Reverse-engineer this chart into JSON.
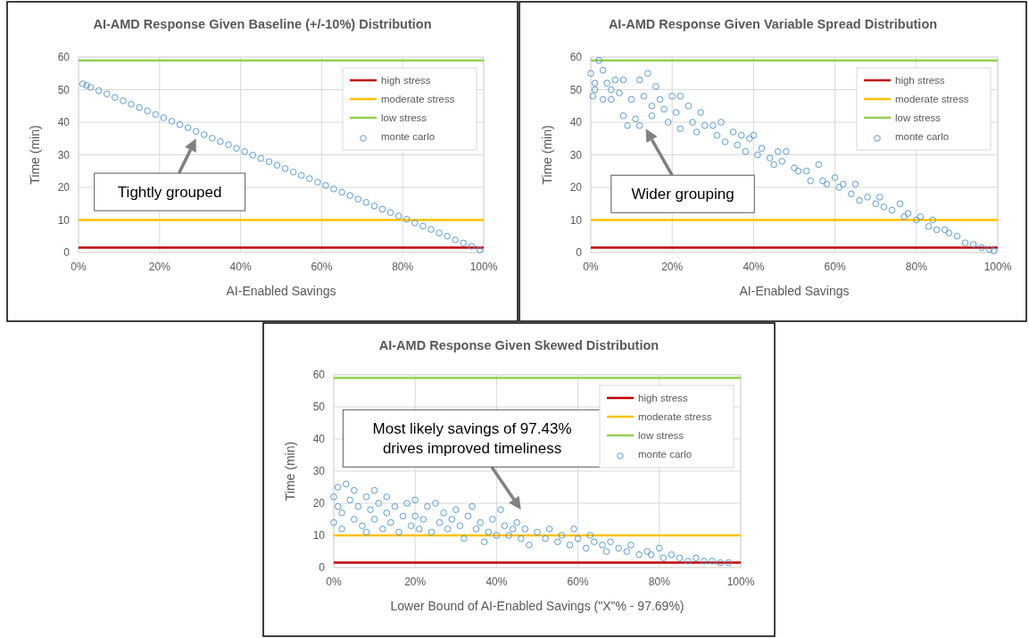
{
  "chart_data": [
    {
      "type": "scatter",
      "title": "AI-AMD Response Given Baseline (+/-10%) Distribution",
      "xlabel": "AI-Enabled Savings",
      "ylabel": "Time (min)",
      "xlim": [
        0,
        100
      ],
      "xticks": [
        {
          "value": 0,
          "label": "0%"
        },
        {
          "value": 20,
          "label": "20%"
        },
        {
          "value": 40,
          "label": "40%"
        },
        {
          "value": 60,
          "label": "60%"
        },
        {
          "value": 80,
          "label": "80%"
        },
        {
          "value": 100,
          "label": "100%"
        }
      ],
      "ylim": [
        0,
        60
      ],
      "yticks": [
        0,
        10,
        20,
        30,
        40,
        50,
        60
      ],
      "grid": true,
      "legend": "top right",
      "annotations": [
        "Tightly grouped"
      ],
      "series": [
        {
          "type": "line",
          "name": "high stress",
          "color": "#c00000",
          "marker": "none",
          "x": [
            0,
            100
          ],
          "values": [
            1.5,
            1.5
          ]
        },
        {
          "type": "line",
          "name": "moderate stress",
          "color": "#ffc000",
          "marker": "none",
          "x": [
            0,
            100
          ],
          "values": [
            10,
            10
          ]
        },
        {
          "type": "line",
          "name": "low stress",
          "color": "#92d050",
          "marker": "none",
          "x": [
            0,
            100
          ],
          "values": [
            59,
            59
          ]
        },
        {
          "type": "scatter",
          "name": "monte carlo",
          "color": "#5b9bd5",
          "marker": "circle",
          "x": [
            1,
            2,
            3,
            5,
            7,
            9,
            11,
            13,
            15,
            17,
            19,
            21,
            23,
            25,
            27,
            29,
            31,
            33,
            35,
            37,
            39,
            41,
            43,
            45,
            47,
            49,
            51,
            53,
            55,
            57,
            59,
            61,
            63,
            65,
            67,
            69,
            71,
            73,
            75,
            77,
            79,
            81,
            83,
            85,
            87,
            89,
            91,
            93,
            95,
            97,
            99
          ],
          "values": [
            51.8,
            51.3,
            50.7,
            49.7,
            48.7,
            47.6,
            46.6,
            45.5,
            44.5,
            43.5,
            42.4,
            41.4,
            40.3,
            39.3,
            38.3,
            37.2,
            36.2,
            35.1,
            34.1,
            33.1,
            32.0,
            31.0,
            29.9,
            28.9,
            27.9,
            26.8,
            25.8,
            24.7,
            23.7,
            22.7,
            21.6,
            20.6,
            19.5,
            18.5,
            17.5,
            16.4,
            15.4,
            14.3,
            13.3,
            12.3,
            11.2,
            10.2,
            9.1,
            8.1,
            7.1,
            6.0,
            5.0,
            3.9,
            2.9,
            1.9,
            0.8
          ]
        }
      ]
    },
    {
      "type": "scatter",
      "title": "AI-AMD Response Given Variable Spread Distribution",
      "xlabel": "AI-Enabled Savings",
      "ylabel": "Time (min)",
      "xlim": [
        0,
        100
      ],
      "xticks": [
        {
          "value": 0,
          "label": "0%"
        },
        {
          "value": 20,
          "label": "20%"
        },
        {
          "value": 40,
          "label": "40%"
        },
        {
          "value": 60,
          "label": "60%"
        },
        {
          "value": 80,
          "label": "80%"
        },
        {
          "value": 100,
          "label": "100%"
        }
      ],
      "ylim": [
        0,
        60
      ],
      "yticks": [
        0,
        10,
        20,
        30,
        40,
        50,
        60
      ],
      "grid": true,
      "legend": "top right",
      "annotations": [
        "Wider grouping"
      ],
      "series": [
        {
          "type": "line",
          "name": "high stress",
          "color": "#c00000",
          "marker": "none",
          "x": [
            0,
            100
          ],
          "values": [
            1.5,
            1.5
          ]
        },
        {
          "type": "line",
          "name": "moderate stress",
          "color": "#ffc000",
          "marker": "none",
          "x": [
            0,
            100
          ],
          "values": [
            10,
            10
          ]
        },
        {
          "type": "line",
          "name": "low stress",
          "color": "#92d050",
          "marker": "none",
          "x": [
            0,
            100
          ],
          "values": [
            59,
            59
          ]
        },
        {
          "type": "scatter",
          "name": "monte carlo",
          "color": "#5b9bd5",
          "marker": "circle",
          "x": [
            0,
            0.5,
            1,
            1,
            2,
            3,
            3,
            4,
            5,
            5,
            6,
            7,
            8,
            8,
            9,
            10,
            11,
            12,
            12,
            13,
            14,
            15,
            15,
            16,
            17,
            18,
            19,
            20,
            21,
            22,
            22,
            24,
            25,
            26,
            27,
            28,
            30,
            31,
            32,
            33,
            35,
            36,
            37,
            38,
            39,
            40,
            41,
            42,
            44,
            45,
            46,
            47,
            48,
            50,
            51,
            53,
            54,
            56,
            57,
            58,
            60,
            61,
            62,
            64,
            65,
            66,
            68,
            70,
            71,
            72,
            74,
            76,
            77,
            78,
            80,
            81,
            83,
            84,
            85,
            87,
            88,
            90,
            92,
            94,
            96,
            98,
            99
          ],
          "values": [
            55,
            48,
            52,
            50,
            59,
            56,
            47,
            52,
            50,
            47,
            53,
            49,
            53,
            42,
            39,
            47,
            41,
            53,
            39,
            48,
            55,
            45,
            42,
            51,
            47,
            44,
            40,
            48,
            43,
            38,
            48,
            45,
            40,
            37,
            43,
            39,
            39,
            36,
            40,
            34,
            37,
            33,
            36,
            31,
            35,
            36,
            30,
            32,
            29,
            27,
            31,
            28,
            31,
            26,
            25,
            25,
            22,
            27,
            22,
            21,
            23,
            20,
            21,
            18,
            21,
            16,
            17,
            15,
            17,
            14,
            13,
            15,
            11,
            12,
            10,
            11,
            8,
            10,
            7,
            7,
            6,
            5,
            3,
            2.5,
            1.5,
            1,
            0.5
          ]
        }
      ]
    },
    {
      "type": "scatter",
      "title": "AI-AMD Response Given Skewed Distribution",
      "xlabel": "Lower Bound of AI-Enabled Savings (\"X\"% - 97.69%)",
      "ylabel": "Time (min)",
      "xlim": [
        0,
        100
      ],
      "xticks": [
        {
          "value": 0,
          "label": "0%"
        },
        {
          "value": 20,
          "label": "20%"
        },
        {
          "value": 40,
          "label": "40%"
        },
        {
          "value": 60,
          "label": "60%"
        },
        {
          "value": 80,
          "label": "80%"
        },
        {
          "value": 100,
          "label": "100%"
        }
      ],
      "ylim": [
        0,
        60
      ],
      "yticks": [
        0,
        10,
        20,
        30,
        40,
        50,
        60
      ],
      "grid": true,
      "legend": "top right",
      "annotations": [
        "Most likely savings of 97.43%\ndrives improved timeliness"
      ],
      "series": [
        {
          "type": "line",
          "name": "high stress",
          "color": "#c00000",
          "marker": "none",
          "x": [
            0,
            100
          ],
          "values": [
            1.5,
            1.5
          ]
        },
        {
          "type": "line",
          "name": "moderate stress",
          "color": "#ffc000",
          "marker": "none",
          "x": [
            0,
            100
          ],
          "values": [
            10,
            10
          ]
        },
        {
          "type": "line",
          "name": "low stress",
          "color": "#92d050",
          "marker": "none",
          "x": [
            0,
            100
          ],
          "values": [
            59,
            59
          ]
        },
        {
          "type": "scatter",
          "name": "monte carlo",
          "color": "#5b9bd5",
          "marker": "circle",
          "x": [
            0,
            0,
            1,
            1,
            2,
            2,
            3,
            4,
            5,
            5,
            6,
            7,
            8,
            8,
            9,
            10,
            10,
            11,
            12,
            13,
            13,
            14,
            15,
            16,
            17,
            18,
            19,
            20,
            20,
            21,
            22,
            23,
            24,
            25,
            26,
            27,
            28,
            29,
            30,
            31,
            32,
            33,
            34,
            35,
            36,
            37,
            38,
            39,
            40,
            41,
            42,
            43,
            44,
            45,
            46,
            47,
            48,
            50,
            52,
            53,
            55,
            56,
            58,
            59,
            60,
            62,
            63,
            64,
            66,
            67,
            68,
            70,
            72,
            73,
            75,
            77,
            78,
            80,
            81,
            83,
            85,
            87,
            89,
            91,
            93,
            95,
            97
          ],
          "values": [
            22,
            14,
            19,
            25,
            17,
            12,
            26,
            21,
            15,
            24,
            19,
            13,
            22,
            11,
            18,
            24,
            15,
            20,
            12,
            22,
            17,
            14,
            19,
            11,
            16,
            20,
            13,
            21,
            16,
            12,
            15,
            19,
            11,
            20,
            14,
            17,
            12,
            15,
            18,
            13,
            9,
            16,
            19,
            12,
            14,
            8,
            11,
            15,
            10,
            18,
            13,
            10,
            12,
            14,
            9,
            12,
            7,
            11,
            9,
            12,
            8,
            10,
            7,
            12,
            9,
            6,
            10,
            8,
            7,
            5,
            8,
            6,
            5,
            7,
            4,
            5,
            4,
            6,
            3,
            4,
            3,
            2,
            3,
            2,
            2,
            1.5,
            1.5
          ]
        }
      ]
    }
  ]
}
